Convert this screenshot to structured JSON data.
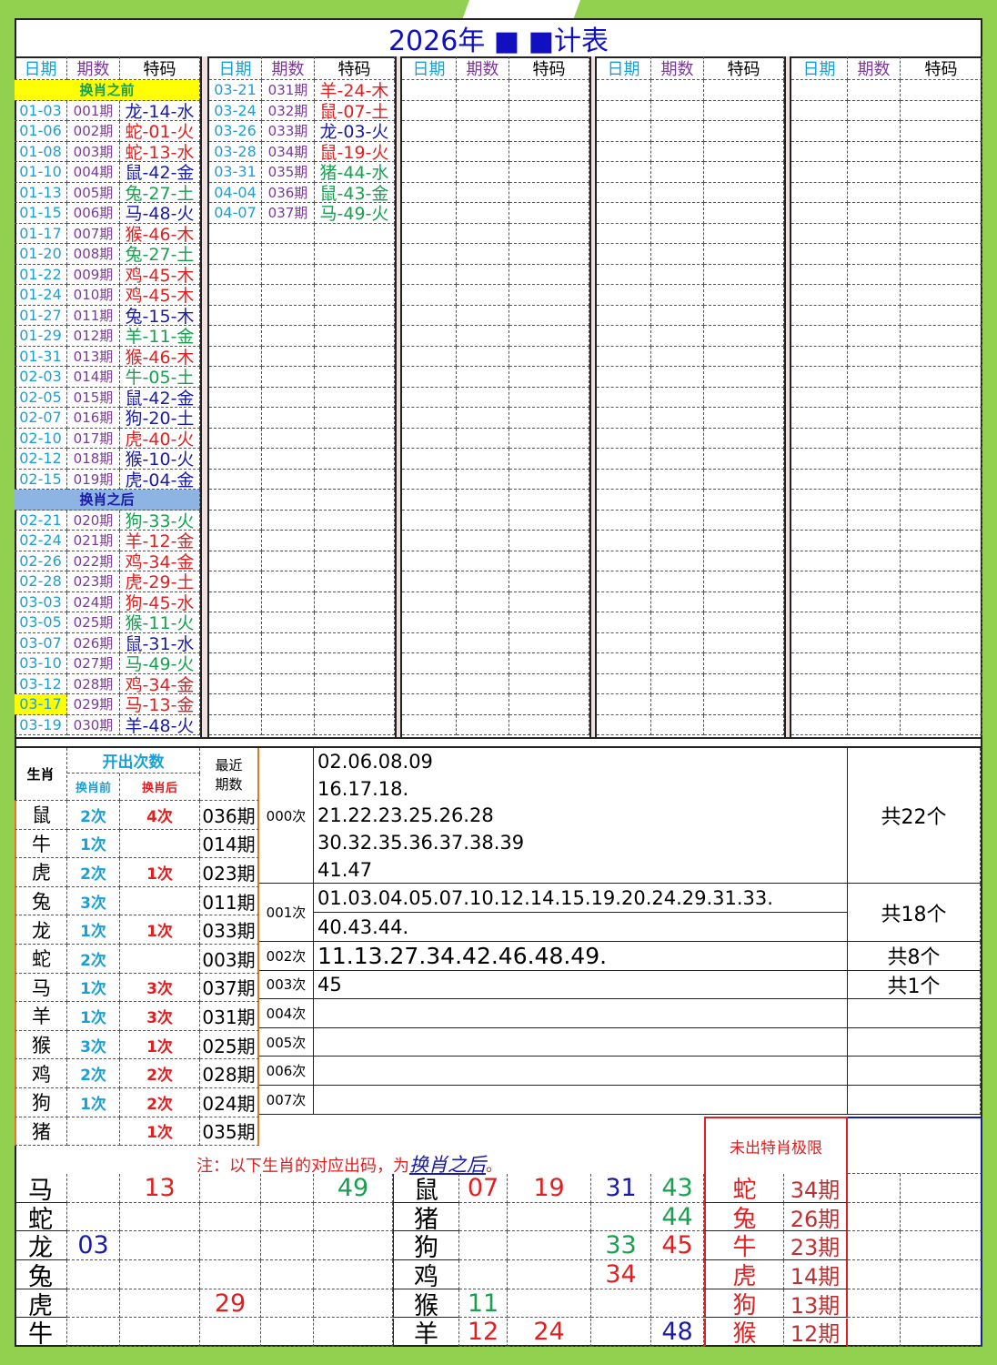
{
  "title": "2026年 ■ ■计表",
  "colors": {
    "background": "#92d050",
    "red": "#e02020",
    "blue": "#1a1aa8",
    "green": "#18a050",
    "date": "#1aa0d8",
    "period": "#7a3a9a",
    "before_band": "#ffff00",
    "after_band": "#8db4e2"
  },
  "headers": {
    "date": "日期",
    "period": "期数",
    "code": "特码"
  },
  "bands": {
    "before": "换肖之前",
    "after": "换肖之后"
  },
  "group1": [
    [
      "01-03",
      "001期",
      "龙-14-水",
      "blue"
    ],
    [
      "01-06",
      "002期",
      "蛇-01-火",
      "red"
    ],
    [
      "01-08",
      "003期",
      "蛇-13-水",
      "red"
    ],
    [
      "01-10",
      "004期",
      "鼠-42-金",
      "blue"
    ],
    [
      "01-13",
      "005期",
      "兔-27-土",
      "green"
    ],
    [
      "01-15",
      "006期",
      "马-48-火",
      "blue"
    ],
    [
      "01-17",
      "007期",
      "猴-46-木",
      "red"
    ],
    [
      "01-20",
      "008期",
      "兔-27-土",
      "green"
    ],
    [
      "01-22",
      "009期",
      "鸡-45-木",
      "red"
    ],
    [
      "01-24",
      "010期",
      "鸡-45-木",
      "red"
    ],
    [
      "01-27",
      "011期",
      "兔-15-木",
      "blue"
    ],
    [
      "01-29",
      "012期",
      "羊-11-金",
      "green"
    ],
    [
      "01-31",
      "013期",
      "猴-46-木",
      "red"
    ],
    [
      "02-03",
      "014期",
      "牛-05-土",
      "green"
    ],
    [
      "02-05",
      "015期",
      "鼠-42-金",
      "blue"
    ],
    [
      "02-07",
      "016期",
      "狗-20-土",
      "blue"
    ],
    [
      "02-10",
      "017期",
      "虎-40-火",
      "red"
    ],
    [
      "02-12",
      "018期",
      "猴-10-火",
      "blue"
    ],
    [
      "02-15",
      "019期",
      "虎-04-金",
      "blue"
    ]
  ],
  "group1_after": [
    [
      "02-21",
      "020期",
      "狗-33-火",
      "green"
    ],
    [
      "02-24",
      "021期",
      "羊-12-金",
      "red"
    ],
    [
      "02-26",
      "022期",
      "鸡-34-金",
      "red"
    ],
    [
      "02-28",
      "023期",
      "虎-29-土",
      "red"
    ],
    [
      "03-03",
      "024期",
      "狗-45-水",
      "red"
    ],
    [
      "03-05",
      "025期",
      "猴-11-火",
      "green"
    ],
    [
      "03-07",
      "026期",
      "鼠-31-水",
      "blue"
    ],
    [
      "03-10",
      "027期",
      "马-49-火",
      "green"
    ],
    [
      "03-12",
      "028期",
      "鸡-34-金",
      "red"
    ],
    [
      "03-17",
      "029期",
      "马-13-金",
      "red"
    ],
    [
      "03-19",
      "030期",
      "羊-48-火",
      "blue"
    ]
  ],
  "highlighted_date": "03-17",
  "group2": [
    [
      "03-21",
      "031期",
      "羊-24-木",
      "red"
    ],
    [
      "03-24",
      "032期",
      "鼠-07-土",
      "red"
    ],
    [
      "03-26",
      "033期",
      "龙-03-火",
      "blue"
    ],
    [
      "03-28",
      "034期",
      "鼠-19-火",
      "red"
    ],
    [
      "03-31",
      "035期",
      "猪-44-水",
      "green"
    ],
    [
      "04-04",
      "036期",
      "鼠-43-金",
      "green"
    ],
    [
      "04-07",
      "037期",
      "马-49-火",
      "green"
    ]
  ],
  "stats": {
    "h_zodiac": "生肖",
    "h_count": "开出次数",
    "h_before": "换肖前",
    "h_after": "换肖后",
    "h_recent": "最近期数",
    "rows": [
      [
        "鼠",
        "2次",
        "4次",
        "036期"
      ],
      [
        "牛",
        "1次",
        "",
        "014期"
      ],
      [
        "虎",
        "2次",
        "1次",
        "023期"
      ],
      [
        "兔",
        "3次",
        "",
        "011期"
      ],
      [
        "龙",
        "1次",
        "1次",
        "033期"
      ],
      [
        "蛇",
        "2次",
        "",
        "003期"
      ],
      [
        "马",
        "1次",
        "3次",
        "037期"
      ],
      [
        "羊",
        "1次",
        "3次",
        "031期"
      ],
      [
        "猴",
        "3次",
        "1次",
        "025期"
      ],
      [
        "鸡",
        "2次",
        "2次",
        "028期"
      ],
      [
        "狗",
        "1次",
        "2次",
        "024期"
      ],
      [
        "猪",
        "",
        "1次",
        "035期"
      ]
    ]
  },
  "omission": [
    {
      "label": "000次",
      "lines": [
        "02.06.08.09",
        "16.17.18.",
        "21.22.23.25.26.28",
        "30.32.35.36.37.38.39",
        "41.47"
      ],
      "total": "共22个"
    },
    {
      "label": "001次",
      "lines": [
        "01.03.04.05.07.10.12.14.15.19.20.24.29.31.33.",
        "40.43.44."
      ],
      "total": "共18个"
    },
    {
      "label": "002次",
      "lines": [
        "11.13.27.34.42.46.48.49."
      ],
      "total": "共8个"
    },
    {
      "label": "003次",
      "lines": [
        "45"
      ],
      "total": "共1个"
    },
    {
      "label": "004次",
      "lines": [
        ""
      ],
      "total": ""
    },
    {
      "label": "005次",
      "lines": [
        ""
      ],
      "total": ""
    },
    {
      "label": "006次",
      "lines": [
        ""
      ],
      "total": ""
    },
    {
      "label": "007次",
      "lines": [
        ""
      ],
      "total": ""
    }
  ],
  "note": {
    "prefix": "注：以下生肖的对应出码，为",
    "link": "换肖之后",
    "suffix": "。"
  },
  "limit_title": "未出特肖极限",
  "grid_left": [
    [
      "马",
      [
        "",
        "13",
        "",
        "",
        "49"
      ],
      [
        "",
        "red",
        "",
        "",
        "green"
      ]
    ],
    [
      "蛇",
      [
        "",
        "",
        "",
        "",
        ""
      ],
      [
        "",
        "",
        "",
        "",
        ""
      ]
    ],
    [
      "龙",
      [
        "03",
        "",
        "",
        "",
        ""
      ],
      [
        "blue",
        "",
        "",
        "",
        ""
      ]
    ],
    [
      "兔",
      [
        "",
        "",
        "",
        "",
        ""
      ],
      [
        "",
        "",
        "",
        "",
        ""
      ]
    ],
    [
      "虎",
      [
        "",
        "",
        "29",
        "",
        ""
      ],
      [
        "",
        "",
        "red",
        "",
        ""
      ]
    ],
    [
      "牛",
      [
        "",
        "",
        "",
        "",
        ""
      ],
      [
        "",
        "",
        "",
        "",
        ""
      ]
    ]
  ],
  "grid_right": [
    [
      "鼠",
      [
        "07",
        "19",
        "31",
        "43"
      ],
      [
        "red",
        "red",
        "blue",
        "green"
      ]
    ],
    [
      "猪",
      [
        "",
        "",
        "",
        "44"
      ],
      [
        "",
        "",
        "",
        "green"
      ]
    ],
    [
      "狗",
      [
        "",
        "",
        "33",
        "45"
      ],
      [
        "",
        "",
        "green",
        "red"
      ]
    ],
    [
      "鸡",
      [
        "",
        "",
        "34",
        ""
      ],
      [
        "",
        "",
        "red",
        ""
      ]
    ],
    [
      "猴",
      [
        "11",
        "",
        "",
        ""
      ],
      [
        "green",
        "",
        "",
        ""
      ]
    ],
    [
      "羊",
      [
        "12",
        "24",
        "",
        "48"
      ],
      [
        "red",
        "red",
        "",
        "blue"
      ]
    ]
  ],
  "limits": [
    [
      "蛇",
      "34期"
    ],
    [
      "兔",
      "26期"
    ],
    [
      "牛",
      "23期"
    ],
    [
      "虎",
      "14期"
    ],
    [
      "狗",
      "13期"
    ],
    [
      "猴",
      "12期"
    ]
  ]
}
